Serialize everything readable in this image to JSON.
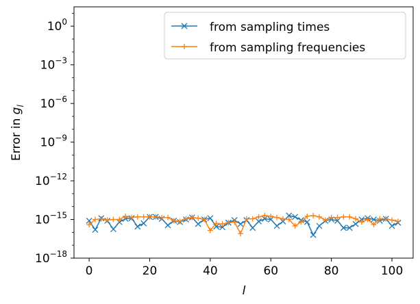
{
  "chart_data": {
    "type": "line",
    "title": "",
    "xlabel": "l",
    "ylabel_prefix": "Error in ",
    "ylabel_var": "g",
    "ylabel_sub": "l",
    "yscale": "log",
    "xlim": [
      -5,
      107
    ],
    "ylim_exp": [
      -18,
      1.5
    ],
    "x_ticks": [
      0,
      20,
      40,
      60,
      80,
      100
    ],
    "y_tick_exponents": [
      0,
      -3,
      -6,
      -9,
      -12,
      -15,
      -18
    ],
    "legend_position": "top-right",
    "series": [
      {
        "name": "from sampling times",
        "color": "#1f77b4",
        "marker": "x",
        "x": [
          0,
          2,
          4,
          6,
          8,
          10,
          12,
          14,
          16,
          18,
          20,
          22,
          24,
          26,
          28,
          30,
          32,
          34,
          36,
          38,
          40,
          42,
          44,
          46,
          48,
          50,
          52,
          54,
          56,
          58,
          60,
          62,
          64,
          66,
          68,
          70,
          72,
          74,
          76,
          78,
          80,
          82,
          84,
          86,
          88,
          90,
          92,
          94,
          96,
          98,
          100,
          102
        ],
        "log10_y": [
          -15.1,
          -15.8,
          -14.9,
          -15.1,
          -15.75,
          -15.2,
          -14.95,
          -14.9,
          -15.55,
          -15.3,
          -14.8,
          -14.8,
          -14.95,
          -15.45,
          -15.1,
          -15.2,
          -15.0,
          -14.85,
          -15.35,
          -15.0,
          -14.9,
          -15.55,
          -15.6,
          -15.25,
          -15.05,
          -15.35,
          -15.05,
          -15.65,
          -15.15,
          -14.95,
          -15.0,
          -15.5,
          -15.15,
          -14.7,
          -14.8,
          -15.05,
          -15.2,
          -16.2,
          -15.5,
          -15.1,
          -15.0,
          -15.1,
          -15.65,
          -15.65,
          -15.35,
          -15.0,
          -14.9,
          -15.0,
          -15.1,
          -14.95,
          -15.5,
          -15.25
        ]
      },
      {
        "name": "from sampling frequencies",
        "color": "#ff7f0e",
        "marker": "+",
        "x": [
          0,
          2,
          4,
          6,
          8,
          10,
          12,
          14,
          16,
          18,
          20,
          22,
          24,
          26,
          28,
          30,
          32,
          34,
          36,
          38,
          40,
          42,
          44,
          46,
          48,
          50,
          52,
          54,
          56,
          58,
          60,
          62,
          64,
          66,
          68,
          70,
          72,
          74,
          76,
          78,
          80,
          82,
          84,
          86,
          88,
          90,
          92,
          94,
          96,
          98,
          100,
          102
        ],
        "log10_y": [
          -15.4,
          -15.0,
          -14.95,
          -15.05,
          -15.0,
          -15.0,
          -14.75,
          -14.85,
          -14.8,
          -14.8,
          -14.8,
          -14.8,
          -14.85,
          -14.85,
          -15.1,
          -15.15,
          -14.95,
          -14.85,
          -14.9,
          -15.0,
          -15.85,
          -15.3,
          -15.35,
          -15.25,
          -15.2,
          -16.1,
          -14.95,
          -14.95,
          -14.8,
          -14.7,
          -14.75,
          -14.85,
          -14.95,
          -15.0,
          -15.5,
          -15.2,
          -14.75,
          -14.7,
          -14.8,
          -15.05,
          -14.85,
          -14.85,
          -14.8,
          -14.8,
          -14.95,
          -15.2,
          -15.0,
          -15.4,
          -14.95,
          -14.95,
          -15.05,
          -15.15
        ]
      }
    ]
  }
}
